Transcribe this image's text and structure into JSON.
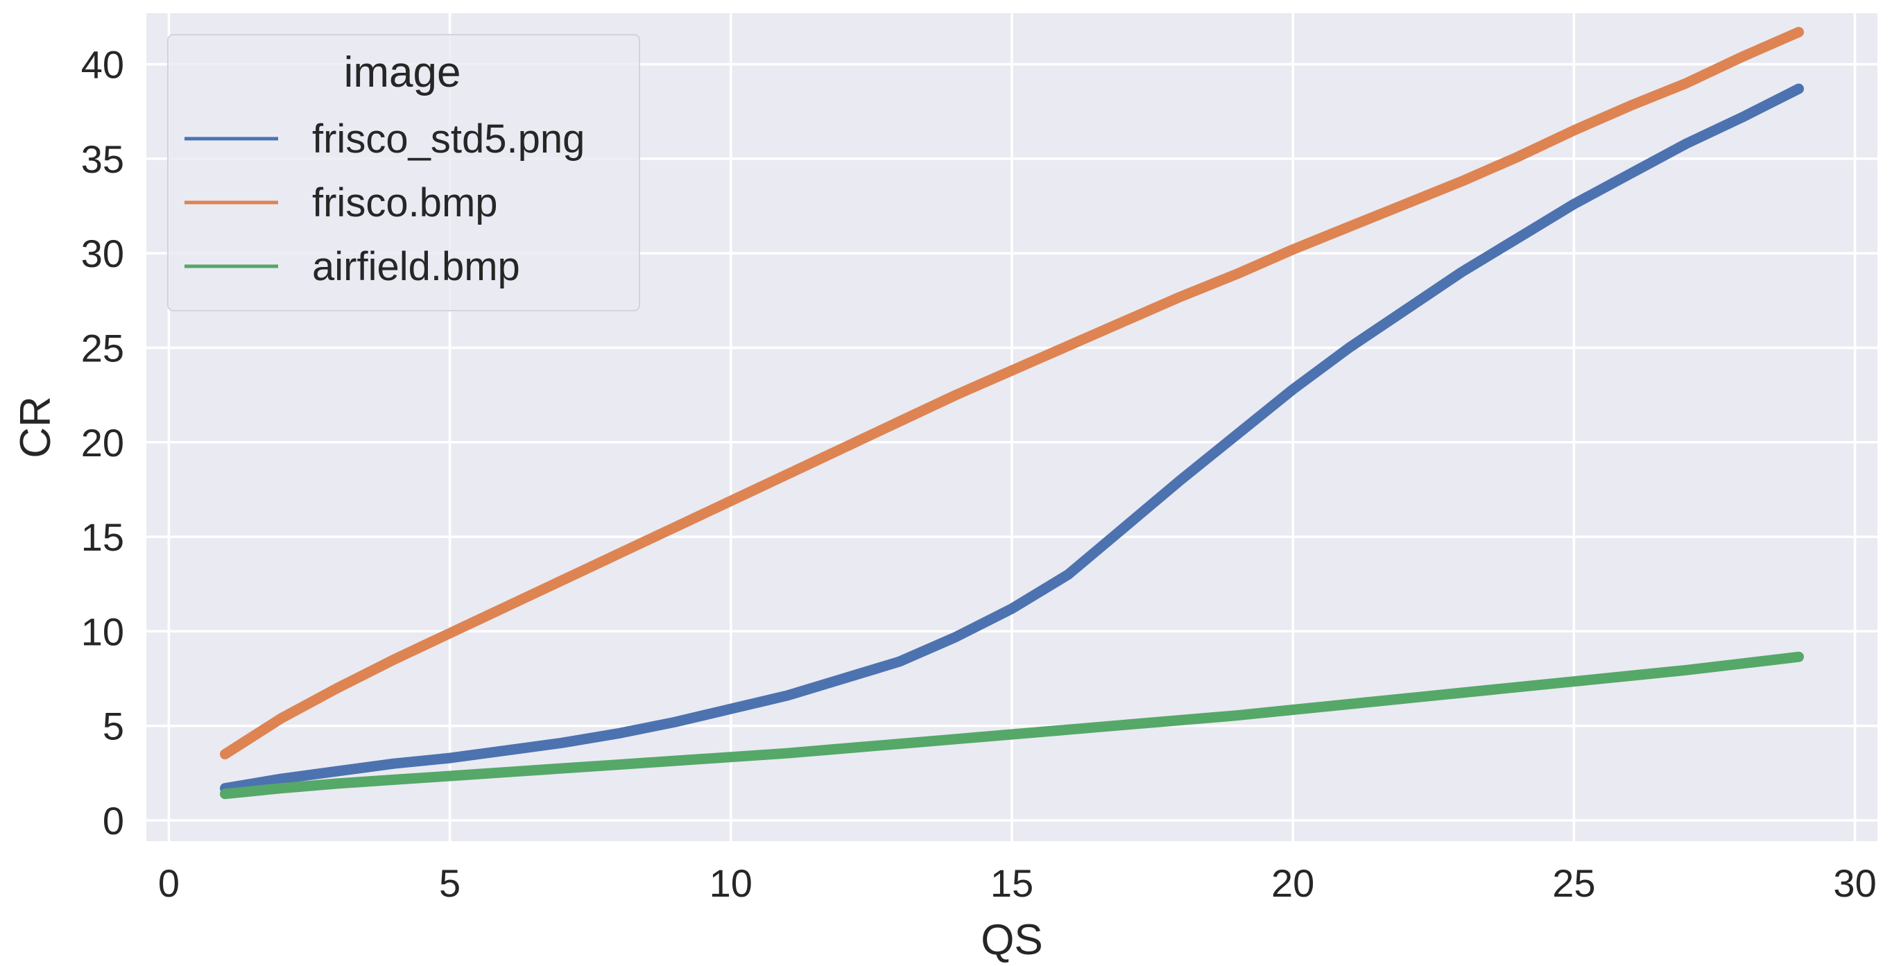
{
  "chart_data": {
    "type": "line",
    "title": "",
    "xlabel": "QS",
    "ylabel": "CR",
    "xlim": [
      -0.4,
      30.4
    ],
    "ylim": [
      -1.1,
      42.7
    ],
    "xticks": [
      0,
      5,
      10,
      15,
      20,
      25,
      30
    ],
    "yticks": [
      0,
      5,
      10,
      15,
      20,
      25,
      30,
      35,
      40
    ],
    "grid": true,
    "background": "#eaeaf2",
    "legend": {
      "title": "image",
      "placement": "top-left"
    },
    "series": [
      {
        "name": "frisco_std5.png",
        "color": "#4c72b0",
        "x": [
          1,
          2,
          3,
          4,
          5,
          6,
          7,
          8,
          9,
          10,
          11,
          12,
          13,
          14,
          15,
          16,
          17,
          18,
          19,
          20,
          21,
          22,
          23,
          24,
          25,
          26,
          27,
          28,
          29
        ],
        "y": [
          1.7,
          2.2,
          2.6,
          3.0,
          3.3,
          3.7,
          4.1,
          4.6,
          5.2,
          5.9,
          6.6,
          7.5,
          8.4,
          9.7,
          11.2,
          13.0,
          15.5,
          18.0,
          20.4,
          22.8,
          25.0,
          27.0,
          29.0,
          30.8,
          32.6,
          34.2,
          35.8,
          37.2,
          38.7
        ]
      },
      {
        "name": "frisco.bmp",
        "color": "#dd8452",
        "x": [
          1,
          2,
          3,
          4,
          5,
          6,
          7,
          8,
          9,
          10,
          11,
          12,
          13,
          14,
          15,
          16,
          17,
          18,
          19,
          20,
          21,
          22,
          23,
          24,
          25,
          26,
          27,
          28,
          29
        ],
        "y": [
          3.5,
          5.4,
          7.0,
          8.5,
          9.9,
          11.3,
          12.7,
          14.1,
          15.5,
          16.9,
          18.3,
          19.7,
          21.1,
          22.5,
          23.8,
          25.1,
          26.4,
          27.7,
          28.9,
          30.2,
          31.4,
          32.6,
          33.8,
          35.1,
          36.5,
          37.8,
          39.0,
          40.4,
          41.7
        ]
      },
      {
        "name": "airfield.bmp",
        "color": "#55a868",
        "x": [
          1,
          2,
          3,
          4,
          5,
          6,
          7,
          8,
          9,
          10,
          11,
          12,
          13,
          14,
          15,
          16,
          17,
          18,
          19,
          20,
          21,
          22,
          23,
          24,
          25,
          26,
          27,
          28,
          29
        ],
        "y": [
          1.4,
          1.7,
          1.95,
          2.15,
          2.35,
          2.55,
          2.75,
          2.95,
          3.15,
          3.35,
          3.55,
          3.8,
          4.05,
          4.3,
          4.55,
          4.8,
          5.05,
          5.3,
          5.55,
          5.85,
          6.15,
          6.45,
          6.75,
          7.05,
          7.35,
          7.65,
          7.95,
          8.3,
          8.65
        ]
      }
    ]
  }
}
